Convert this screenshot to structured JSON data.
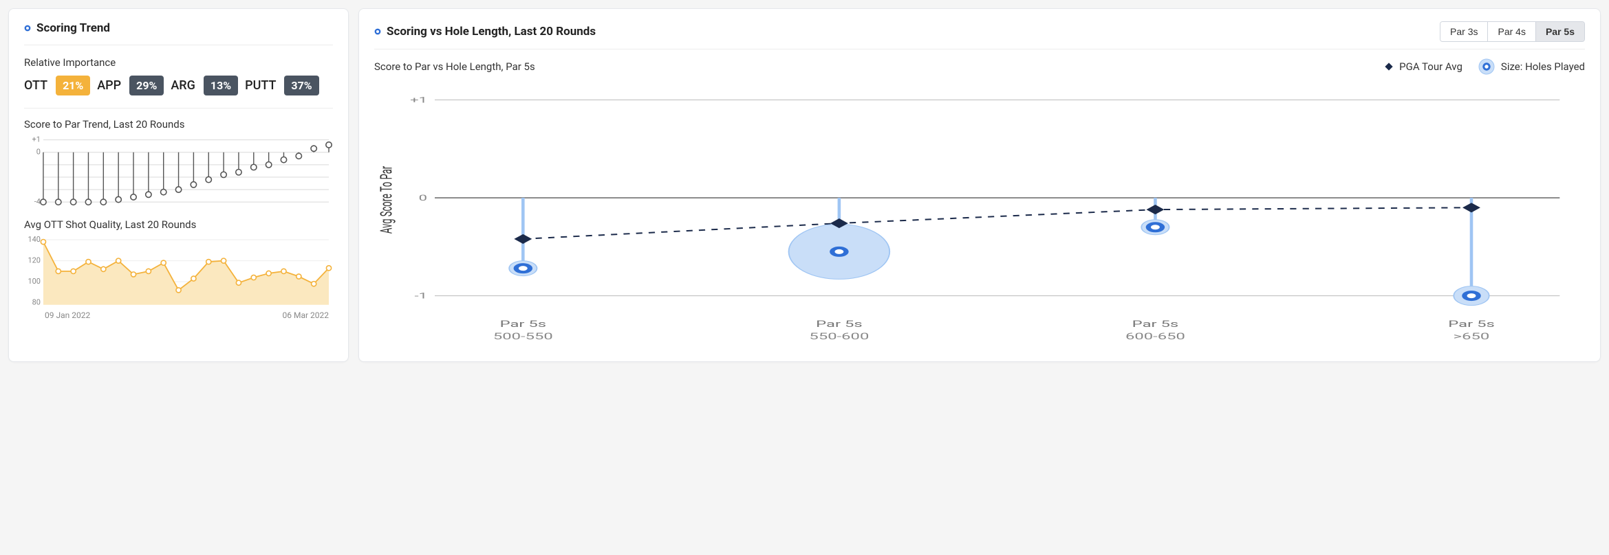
{
  "left_card": {
    "title": "Scoring Trend",
    "bullet_color": "#2f6fd6",
    "rel_importance_label": "Relative Importance",
    "badges": [
      {
        "cat": "OTT",
        "val": "21%",
        "bg": "#f4b23b",
        "highlight": true
      },
      {
        "cat": "APP",
        "val": "29%",
        "bg": "#4a5461",
        "highlight": false
      },
      {
        "cat": "ARG",
        "val": "13%",
        "bg": "#4a5461",
        "highlight": false
      },
      {
        "cat": "PUTT",
        "val": "37%",
        "bg": "#4a5461",
        "highlight": false
      }
    ],
    "trend_chart": {
      "title": "Score to Par Trend, Last 20 Rounds",
      "yticks": [
        1,
        0,
        -4
      ],
      "ymin": -4.2,
      "ymax": 1.2,
      "values": [
        -4,
        -4,
        -4,
        -4,
        -4,
        -3.8,
        -3.6,
        -3.4,
        -3.2,
        -3.0,
        -2.6,
        -2.2,
        -1.8,
        -1.6,
        -1.2,
        -1.0,
        -0.6,
        -0.3,
        0.3,
        0.6
      ],
      "x_label_start": "09 Jan 2022",
      "x_label_end": "06 Mar 2022",
      "line_color": "#555555",
      "grid_color": "#d9d9d9",
      "marker_fill": "#ffffff"
    },
    "ott_chart": {
      "title": "Avg OTT Shot Quality, Last 20 Rounds",
      "yticks": [
        140,
        120,
        100,
        80
      ],
      "ymin": 78,
      "ymax": 142,
      "values": [
        138,
        110,
        110,
        119,
        112,
        120,
        107,
        110,
        118,
        92,
        103,
        119,
        120,
        99,
        104,
        108,
        110,
        105,
        98,
        113
      ],
      "line_color": "#f4b23b",
      "fill_color": "#fbe8bf",
      "grid_color": "#eeeeee",
      "marker_fill": "#ffffff"
    }
  },
  "right_card": {
    "title": "Scoring vs Hole Length, Last 20 Rounds",
    "bullet_color": "#2f6fd6",
    "tabs": [
      {
        "label": "Par 3s",
        "active": false
      },
      {
        "label": "Par 4s",
        "active": false
      },
      {
        "label": "Par 5s",
        "active": true
      }
    ],
    "subtitle": "Score to Par vs Hole Length, Par 5s",
    "legend": {
      "pga": "PGA Tour Avg",
      "size": "Size: Holes Played",
      "diamond_color": "#1b2a4a",
      "bubble_stroke": "#2f6fd6",
      "bubble_fill": "#c9def8"
    },
    "chart": {
      "y_axis_label": "Avg Score To Par",
      "yticks": [
        "+1",
        "0",
        "-1"
      ],
      "ymin": -1.15,
      "ymax": 1.15,
      "grid_color": "#b9b9b9",
      "zero_line_color": "#666666",
      "dash_color": "#1b2a4a",
      "stem_color": "#9fc5f3",
      "bubble_stroke": "#2f6fd6",
      "bubble_fill": "#c9def8",
      "categories": [
        {
          "label": "Par 5s",
          "sub": "500-550",
          "player": -0.72,
          "size": 11,
          "pga": -0.42
        },
        {
          "label": "Par 5s",
          "sub": "550-600",
          "player": -0.55,
          "size": 40,
          "pga": -0.26
        },
        {
          "label": "Par 5s",
          "sub": "600-650",
          "player": -0.3,
          "size": 11,
          "pga": -0.12
        },
        {
          "label": "Par 5s",
          "sub": ">650",
          "player": -1.0,
          "size": 14,
          "pga": -0.1
        }
      ]
    }
  }
}
